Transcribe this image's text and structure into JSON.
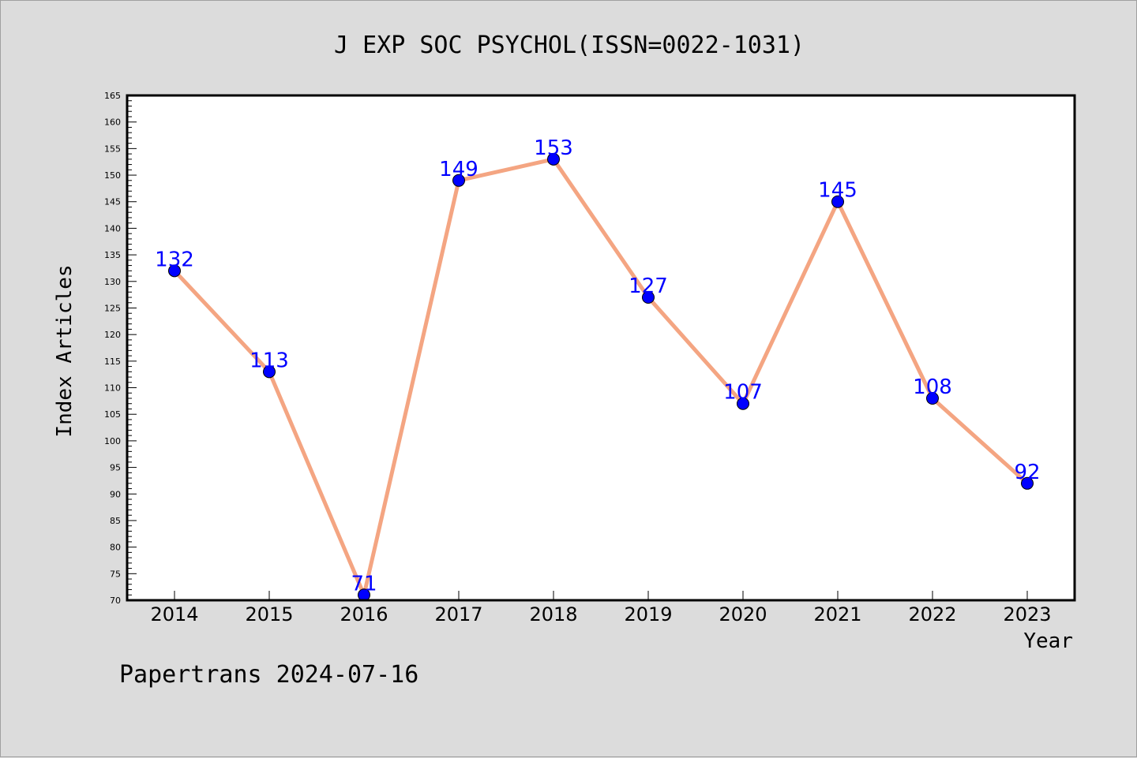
{
  "chart_data": {
    "type": "line",
    "title": "J EXP SOC PSYCHOL(ISSN=0022-1031)",
    "xlabel": "Year",
    "ylabel": "Index Articles",
    "categories": [
      "2014",
      "2015",
      "2016",
      "2017",
      "2018",
      "2019",
      "2020",
      "2021",
      "2022",
      "2023"
    ],
    "series": [
      {
        "values": [
          132,
          113,
          71,
          149,
          153,
          127,
          107,
          145,
          108,
          92
        ]
      }
    ],
    "data_labels": [
      "132",
      "113",
      "71",
      "149",
      "153",
      "127",
      "107",
      "145",
      "108",
      "92"
    ],
    "ylim": [
      70,
      165
    ],
    "yticks": [
      "70",
      "75",
      "80",
      "85",
      "90",
      "95",
      "100",
      "105",
      "110",
      "115",
      "120",
      "125",
      "130",
      "135",
      "140",
      "145",
      "150",
      "155",
      "160",
      "165"
    ],
    "grid": false,
    "line_color": "#f4a582",
    "marker_color": "#0000ff",
    "label_color": "#0000ff"
  },
  "footer": "Papertrans 2024-07-16"
}
